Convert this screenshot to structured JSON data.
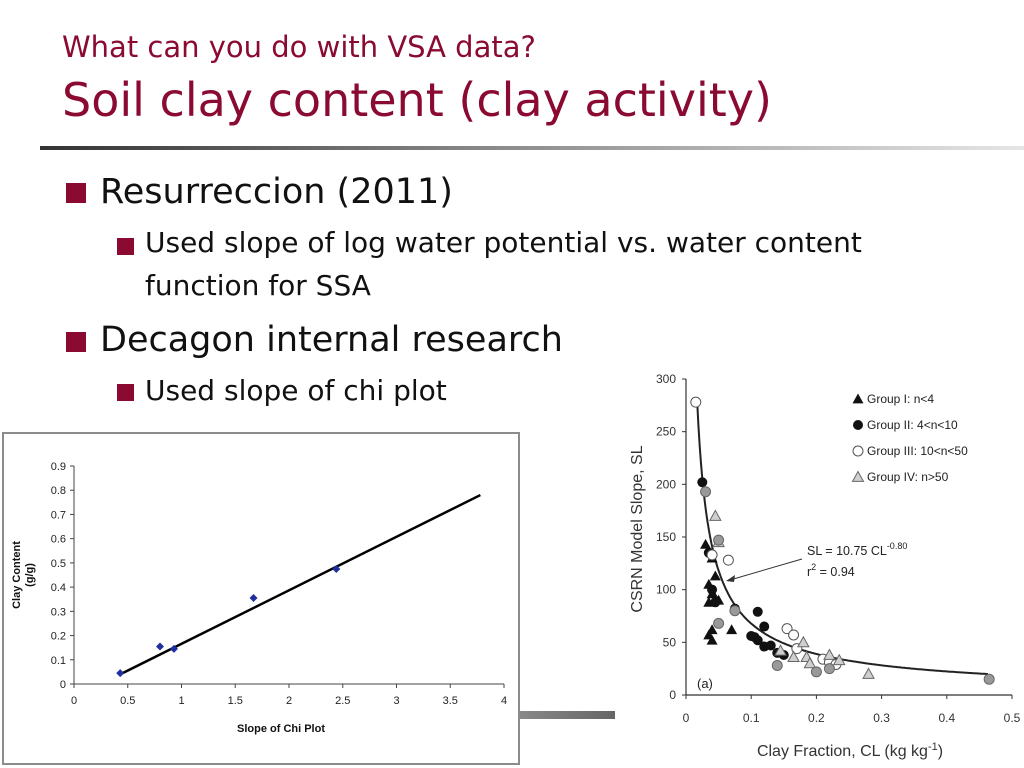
{
  "slide": {
    "subtitle": "What can you do with VSA data?",
    "title": "Soil clay content (clay activity)",
    "bullets": [
      {
        "level": 1,
        "text": "Resurreccion (2011)"
      },
      {
        "level": 2,
        "text": "Used slope of log water potential vs. water content"
      },
      {
        "level": 2,
        "text": "function for SSA",
        "continuation": true
      },
      {
        "level": 1,
        "text": "Decagon internal research"
      },
      {
        "level": 2,
        "text": "Used slope of chi plot"
      }
    ]
  },
  "colors": {
    "accent": "#8a0a32",
    "point_blue": "#1f2fa0"
  },
  "chart_data": [
    {
      "type": "scatter",
      "title": "",
      "xlabel": "Slope of Chi Plot",
      "ylabel_lines": [
        "Clay Content",
        "(g/g)"
      ],
      "xlim": [
        0,
        4
      ],
      "ylim": [
        0,
        0.9
      ],
      "xticks": [
        "0",
        "0.5",
        "1",
        "1.5",
        "2",
        "2.5",
        "3",
        "3.5",
        "4"
      ],
      "yticks": [
        "0",
        "0.1",
        "0.2",
        "0.3",
        "0.4",
        "0.5",
        "0.6",
        "0.7",
        "0.8",
        "0.9"
      ],
      "points": [
        {
          "x": 0.43,
          "y": 0.045
        },
        {
          "x": 0.8,
          "y": 0.155
        },
        {
          "x": 0.93,
          "y": 0.145
        },
        {
          "x": 1.67,
          "y": 0.355
        },
        {
          "x": 2.44,
          "y": 0.475
        }
      ],
      "trendline": {
        "x": [
          0.43,
          3.78
        ],
        "y": [
          0.04,
          0.78
        ]
      },
      "grid": false
    },
    {
      "type": "scatter",
      "panel_label": "(a)",
      "xlabel": "Clay Fraction, CL (kg kg",
      "xlabel_sup": "-1",
      "xlabel_end": ")",
      "ylabel": "CSRN Model Slope, SL",
      "xlim": [
        0,
        0.5
      ],
      "ylim": [
        0,
        300
      ],
      "xticks": [
        "0",
        "0.1",
        "0.2",
        "0.3",
        "0.4",
        "0.5"
      ],
      "yticks": [
        "0",
        "50",
        "100",
        "150",
        "200",
        "250",
        "300"
      ],
      "legend_position": "top-right",
      "legend": [
        {
          "marker": "triangle-filled",
          "label": "Group I: n<4"
        },
        {
          "marker": "circle-filled",
          "label": "Group II: 4<n<10"
        },
        {
          "marker": "circle-open",
          "label": "Group III: 10<n<50"
        },
        {
          "marker": "triangle-open",
          "label": "Group IV: n>50"
        }
      ],
      "equation_main": "SL = 10.75 CL",
      "equation_exp": "-0.80",
      "r2_main": "r",
      "r2_exp": "2",
      "r2_rest": " = 0.94",
      "fit": {
        "a": 10.75,
        "b": -0.8
      },
      "series": [
        {
          "marker": "triangle-filled",
          "points": [
            [
              0.03,
              143
            ],
            [
              0.04,
              130
            ],
            [
              0.045,
              113
            ],
            [
              0.035,
              105
            ],
            [
              0.04,
              96
            ],
            [
              0.035,
              88
            ],
            [
              0.045,
              92
            ],
            [
              0.05,
              90
            ],
            [
              0.04,
              62
            ],
            [
              0.035,
              57
            ],
            [
              0.04,
              52
            ],
            [
              0.07,
              62
            ]
          ]
        },
        {
          "marker": "circle-filled",
          "points": [
            [
              0.025,
              202
            ],
            [
              0.035,
              135
            ],
            [
              0.04,
              100
            ],
            [
              0.045,
              88
            ],
            [
              0.075,
              82
            ],
            [
              0.1,
              56
            ],
            [
              0.11,
              52
            ],
            [
              0.12,
              46
            ],
            [
              0.13,
              47
            ],
            [
              0.14,
              40
            ],
            [
              0.15,
              38
            ],
            [
              0.11,
              79
            ],
            [
              0.12,
              65
            ],
            [
              0.105,
              55
            ]
          ]
        },
        {
          "marker": "circle-open",
          "points": [
            [
              0.015,
              278
            ],
            [
              0.04,
              133
            ],
            [
              0.065,
              128
            ],
            [
              0.155,
              63
            ],
            [
              0.165,
              57
            ],
            [
              0.21,
              34
            ],
            [
              0.22,
              31
            ],
            [
              0.23,
              29
            ],
            [
              0.17,
              44
            ]
          ]
        },
        {
          "marker": "triangle-open",
          "points": [
            [
              0.045,
              170
            ],
            [
              0.05,
              145
            ],
            [
              0.145,
              42
            ],
            [
              0.165,
              36
            ],
            [
              0.18,
              50
            ],
            [
              0.185,
              36
            ],
            [
              0.19,
              30
            ],
            [
              0.22,
              38
            ],
            [
              0.235,
              33
            ],
            [
              0.28,
              20
            ]
          ]
        },
        {
          "marker": "circle-gray",
          "points": [
            [
              0.03,
              193
            ],
            [
              0.05,
              147
            ],
            [
              0.05,
              68
            ],
            [
              0.075,
              80
            ],
            [
              0.14,
              28
            ],
            [
              0.2,
              22
            ],
            [
              0.22,
              25
            ],
            [
              0.465,
              15
            ]
          ]
        }
      ]
    }
  ]
}
